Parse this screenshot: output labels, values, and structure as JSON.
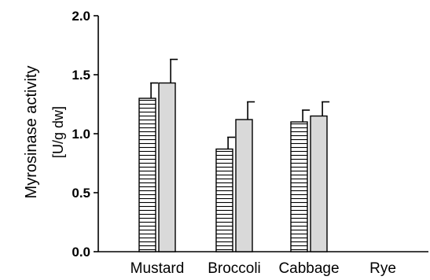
{
  "chart_data": {
    "type": "bar",
    "categories": [
      "Mustard",
      "Broccoli",
      "Cabbage",
      "Rye"
    ],
    "series": [
      {
        "pattern": "horizontal-stripes",
        "fill": "#ffffff",
        "stripe_color": "#000000",
        "values": [
          1.3,
          0.87,
          1.1,
          null
        ],
        "errors": [
          0.13,
          0.1,
          0.1,
          null
        ]
      },
      {
        "pattern": "solid",
        "fill": "#d9d9d9",
        "values": [
          1.43,
          1.12,
          1.15,
          null
        ],
        "errors": [
          0.2,
          0.15,
          0.12,
          null
        ]
      }
    ],
    "ylabel_line1": "Myrosinase activity",
    "ylabel_line2": "[U/g dw]",
    "ylim": [
      0.0,
      2.0
    ],
    "yticks": [
      "0.0",
      "0.5",
      "1.0",
      "1.5",
      "2.0"
    ],
    "ytick_values": [
      0.0,
      0.5,
      1.0,
      1.5,
      2.0
    ],
    "grid": false
  }
}
